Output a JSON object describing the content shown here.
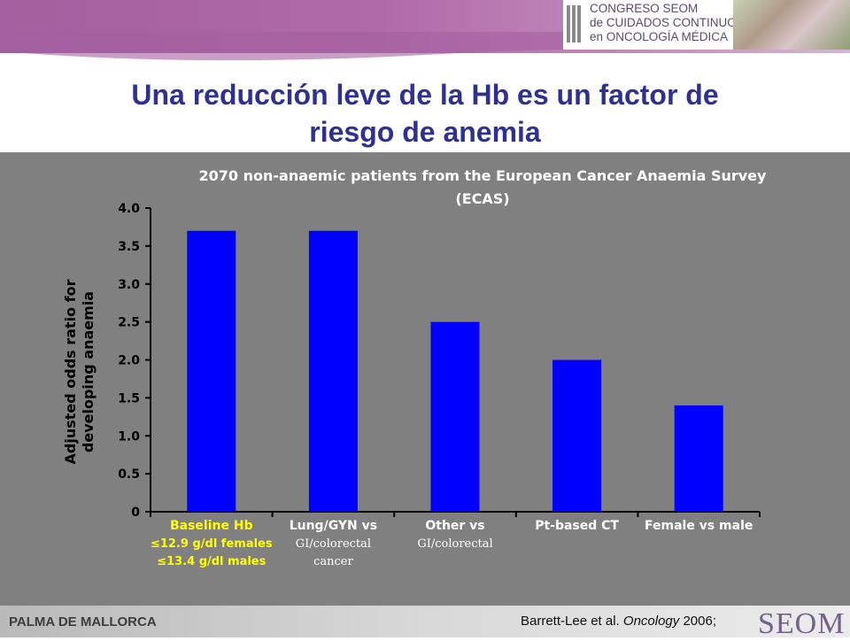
{
  "header": {
    "congress_lines": [
      "CONGRESO SEOM",
      "de CUIDADOS CONTINUOS",
      "en ONCOLOGÍA MÉDICA"
    ]
  },
  "slide": {
    "title_line1": "Una reducción leve de la Hb es un factor de",
    "title_line2": "riesgo de anemia"
  },
  "chart_data": {
    "type": "bar",
    "title_line1": "2070 non-anaemic patients from the European Cancer Anaemia Survey",
    "title_line2": "(ECAS)",
    "ylabel_line1": "Adjusted odds ratio for",
    "ylabel_line2": "developing anaemia",
    "ylim": [
      0,
      4.0
    ],
    "yticks": [
      "0",
      "0.5",
      "1.0",
      "1.5",
      "2.0",
      "2.5",
      "3.0",
      "3.5",
      "4.0"
    ],
    "categories": [
      {
        "lines": [
          "Baseline Hb",
          "≤12.9 g/dl females",
          "≤13.4 g/dl males"
        ],
        "highlight": true
      },
      {
        "lines": [
          "Lung/GYN vs",
          "GI/colorectal",
          "cancer"
        ],
        "highlight": false
      },
      {
        "lines": [
          "Other vs",
          "GI/colorectal"
        ],
        "highlight": false
      },
      {
        "lines": [
          "Pt-based CT"
        ],
        "highlight": false
      },
      {
        "lines": [
          "Female vs male"
        ],
        "highlight": false
      }
    ],
    "values": [
      3.7,
      3.7,
      2.5,
      2.0,
      1.4
    ],
    "bar_color": "#0000ff",
    "highlight_color": "#ffff00",
    "label_color": "#ffffff",
    "grid": false
  },
  "footer": {
    "location": "PALMA DE MALLORCA",
    "citation_authors": "Barrett-Lee et al. ",
    "citation_journal": "Oncology",
    "citation_year": " 2006;",
    "logo_text": "SEOM"
  }
}
